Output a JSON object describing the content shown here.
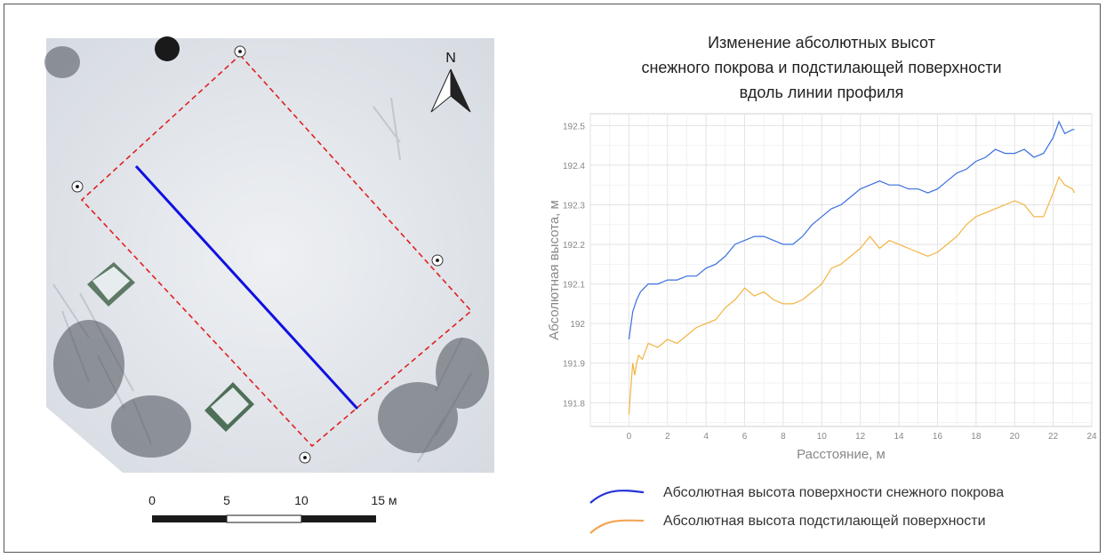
{
  "scale_bar": {
    "labels": [
      "0",
      "5",
      "10",
      "15 м"
    ]
  },
  "map": {
    "north_label": "N",
    "colors": {
      "snow": "#e9ecf0",
      "plot_outline": "#e02020",
      "profile_line": "#1010e0"
    }
  },
  "chart_data": {
    "type": "line",
    "title": [
      "Изменение абсолютных высот",
      "снежного покрова и подстилающей поверхности",
      "вдоль линии профиля"
    ],
    "xlabel": "Расстояние, м",
    "ylabel": "Абсолютная высота, м",
    "xlim": [
      -2,
      24
    ],
    "ylim": [
      191.74,
      192.53
    ],
    "xticks": [
      "0",
      "2",
      "4",
      "6",
      "8",
      "10",
      "12",
      "14",
      "16",
      "18",
      "20",
      "22",
      "24"
    ],
    "yticks": [
      "191.8",
      "191.9",
      "192",
      "192.1",
      "192.2",
      "192.3",
      "192.4",
      "192.5"
    ],
    "grid": true,
    "series": [
      {
        "name": "Абсолютная высота поверхности снежного покрова",
        "color": "#3a6fe0",
        "x": [
          0,
          0.2,
          0.4,
          0.6,
          0.8,
          1,
          1.5,
          2,
          2.5,
          3,
          3.5,
          4,
          4.5,
          5,
          5.5,
          6,
          6.5,
          7,
          7.5,
          8,
          8.5,
          9,
          9.5,
          10,
          10.5,
          11,
          11.5,
          12,
          12.5,
          13,
          13.5,
          14,
          14.5,
          15,
          15.5,
          16,
          16.5,
          17,
          17.5,
          18,
          18.5,
          19,
          19.5,
          20,
          20.5,
          21,
          21.5,
          22,
          22.3,
          22.6,
          23,
          23.1
        ],
        "values": [
          191.96,
          192.03,
          192.06,
          192.08,
          192.09,
          192.1,
          192.1,
          192.11,
          192.11,
          192.12,
          192.12,
          192.14,
          192.15,
          192.17,
          192.2,
          192.21,
          192.22,
          192.22,
          192.21,
          192.2,
          192.2,
          192.22,
          192.25,
          192.27,
          192.29,
          192.3,
          192.32,
          192.34,
          192.35,
          192.36,
          192.35,
          192.35,
          192.34,
          192.34,
          192.33,
          192.34,
          192.36,
          192.38,
          192.39,
          192.41,
          192.42,
          192.44,
          192.43,
          192.43,
          192.44,
          192.42,
          192.43,
          192.47,
          192.51,
          192.48,
          192.49,
          192.49
        ]
      },
      {
        "name": "Абсолютная высота подстилающей поверхности",
        "color": "#f2b441",
        "x": [
          0,
          0.1,
          0.2,
          0.3,
          0.4,
          0.5,
          0.7,
          1,
          1.5,
          2,
          2.5,
          3,
          3.5,
          4,
          4.5,
          5,
          5.5,
          6,
          6.5,
          7,
          7.5,
          8,
          8.5,
          9,
          9.5,
          10,
          10.5,
          11,
          11.5,
          12,
          12.5,
          13,
          13.5,
          14,
          14.5,
          15,
          15.5,
          16,
          16.5,
          17,
          17.5,
          18,
          18.5,
          19,
          19.5,
          20,
          20.5,
          21,
          21.5,
          22,
          22.3,
          22.6,
          23,
          23.1
        ],
        "values": [
          191.77,
          191.84,
          191.9,
          191.87,
          191.9,
          191.92,
          191.91,
          191.95,
          191.94,
          191.96,
          191.95,
          191.97,
          191.99,
          192.0,
          192.01,
          192.04,
          192.06,
          192.09,
          192.07,
          192.08,
          192.06,
          192.05,
          192.05,
          192.06,
          192.08,
          192.1,
          192.14,
          192.15,
          192.17,
          192.19,
          192.22,
          192.19,
          192.21,
          192.2,
          192.19,
          192.18,
          192.17,
          192.18,
          192.2,
          192.22,
          192.25,
          192.27,
          192.28,
          192.29,
          192.3,
          192.31,
          192.3,
          192.27,
          192.27,
          192.33,
          192.37,
          192.35,
          192.34,
          192.33
        ]
      }
    ]
  }
}
